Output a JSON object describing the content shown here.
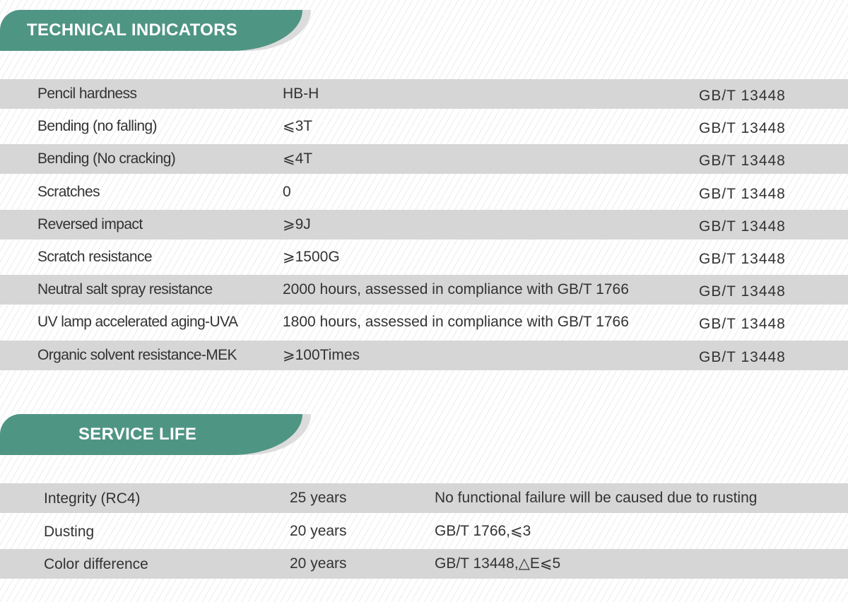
{
  "technical": {
    "title": "TECHNICAL INDICATORS",
    "rows": [
      {
        "name": "Pencil hardness",
        "value": "HB-H",
        "standard": "GB/T 13448"
      },
      {
        "name": "Bending (no falling)",
        "value": "⩽3T",
        "standard": "GB/T 13448"
      },
      {
        "name": "Bending (No cracking)",
        "value": "⩽4T",
        "standard": "GB/T 13448"
      },
      {
        "name": "Scratches",
        "value": "0",
        "standard": "GB/T 13448"
      },
      {
        "name": "Reversed impact",
        "value": "⩾9J",
        "standard": "GB/T 13448"
      },
      {
        "name": "Scratch resistance",
        "value": "⩾1500G",
        "standard": "GB/T 13448"
      },
      {
        "name": "Neutral salt spray resistance",
        "value": "2000 hours, assessed in compliance with GB/T 1766",
        "standard": "GB/T 13448"
      },
      {
        "name": "UV lamp accelerated aging-UVA",
        "value": " 1800 hours, assessed in compliance with GB/T 1766",
        "standard": "GB/T 13448"
      },
      {
        "name": "Organic solvent resistance-MEK",
        "value": "⩾100Times",
        "standard": "GB/T 13448"
      }
    ]
  },
  "service": {
    "title": "SERVICE LIFE",
    "rows": [
      {
        "name": "Integrity (RC4)",
        "value": "25 years",
        "note": "No functional failure will be caused due to rusting"
      },
      {
        "name": "Dusting",
        "value": "20 years",
        "note": "GB/T 1766,⩽3"
      },
      {
        "name": "Color difference",
        "value": "20 years",
        "note": "GB/T 13448,△E⩽5"
      }
    ]
  },
  "colors": {
    "accent": "#4f9584",
    "row_grey": "#d6d6d6"
  }
}
